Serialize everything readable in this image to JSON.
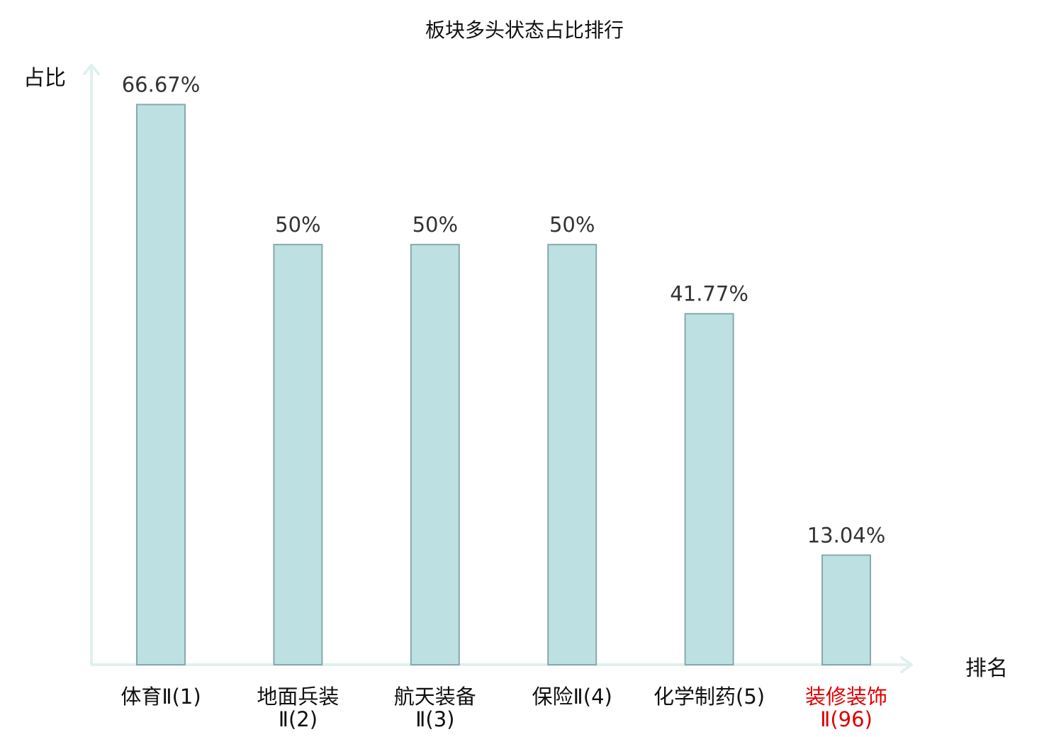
{
  "chart_data": {
    "type": "bar",
    "title": "板块多头状态占比排行",
    "ylabel": "占比",
    "xlabel": "排名",
    "ylim": [
      0,
      70
    ],
    "grid": false,
    "value_suffix": "%",
    "categories": [
      {
        "lines": [
          "体育Ⅱ(1)"
        ],
        "highlight": false
      },
      {
        "lines": [
          "地面兵装",
          "Ⅱ(2)"
        ],
        "highlight": false
      },
      {
        "lines": [
          "航天装备",
          "Ⅱ(3)"
        ],
        "highlight": false
      },
      {
        "lines": [
          "保险Ⅱ(4)"
        ],
        "highlight": false
      },
      {
        "lines": [
          "化学制药(5)"
        ],
        "highlight": false
      },
      {
        "lines": [
          "装修装饰",
          "Ⅱ(96)"
        ],
        "highlight": true
      }
    ],
    "values": [
      66.67,
      50,
      50,
      50,
      41.77,
      13.04
    ],
    "value_labels": [
      "66.67%",
      "50%",
      "50%",
      "50%",
      "41.77%",
      "13.04%"
    ]
  },
  "colors": {
    "bar_fill": "#bde1e3",
    "bar_stroke": "#8aa8aa",
    "axis": "#dff1ef",
    "text": "#111111",
    "value_text": "#333333",
    "highlight": "#e00000"
  }
}
